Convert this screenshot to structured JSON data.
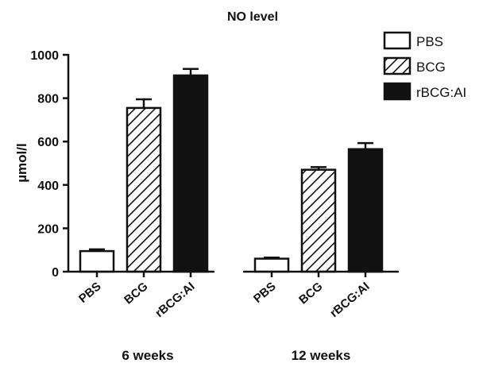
{
  "chart_data": {
    "type": "bar",
    "title": "NO level",
    "ylabel": "µmol/l",
    "ylim": [
      0,
      1000
    ],
    "yticks": [
      0,
      200,
      400,
      600,
      800,
      1000
    ],
    "categories": [
      "PBS",
      "BCG",
      "rBCG:AI"
    ],
    "groups": [
      {
        "label": "6 weeks",
        "values": [
          95,
          755,
          905
        ],
        "errors": [
          8,
          40,
          30
        ]
      },
      {
        "label": "12 weeks",
        "values": [
          60,
          470,
          565
        ],
        "errors": [
          5,
          12,
          28
        ]
      }
    ],
    "series": [
      {
        "name": "PBS",
        "fill": "#ffffff",
        "pattern": "none"
      },
      {
        "name": "BCG",
        "fill": "#ffffff",
        "pattern": "diagonal-hatch"
      },
      {
        "name": "rBCG:AI",
        "fill": "#111111",
        "pattern": "none"
      }
    ],
    "legend_position": "top-right",
    "grid": false
  }
}
